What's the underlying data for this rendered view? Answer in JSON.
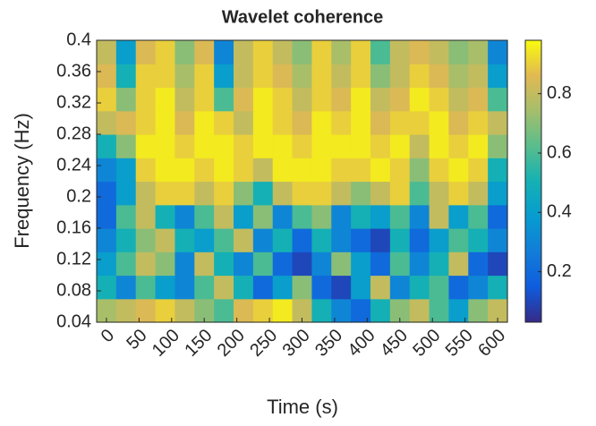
{
  "chart_data": {
    "type": "heatmap",
    "title": "Wavelet coherence",
    "x_label": "Time (s)",
    "y_label": "Frequency (Hz)",
    "colormap": "parula",
    "x": [
      0,
      30,
      60,
      90,
      120,
      150,
      180,
      210,
      240,
      270,
      300,
      330,
      360,
      390,
      420,
      450,
      480,
      510,
      540,
      570,
      600
    ],
    "y": [
      0.055,
      0.085,
      0.115,
      0.145,
      0.175,
      0.205,
      0.235,
      0.265,
      0.295,
      0.325,
      0.355,
      0.385
    ],
    "z": [
      [
        0.75,
        0.8,
        0.85,
        0.9,
        0.8,
        0.7,
        0.6,
        0.85,
        0.9,
        0.95,
        0.8,
        0.5,
        0.3,
        0.2,
        0.5,
        0.7,
        0.8,
        0.6,
        0.4,
        0.7,
        0.8
      ],
      [
        0.5,
        0.3,
        0.6,
        0.4,
        0.3,
        0.6,
        0.8,
        0.5,
        0.2,
        0.4,
        0.7,
        0.2,
        0.1,
        0.4,
        0.8,
        0.3,
        0.5,
        0.6,
        0.2,
        0.3,
        0.5
      ],
      [
        0.4,
        0.6,
        0.8,
        0.7,
        0.3,
        0.8,
        0.5,
        0.3,
        0.6,
        0.2,
        0.1,
        0.3,
        0.7,
        0.4,
        0.2,
        0.6,
        0.3,
        0.5,
        0.8,
        0.2,
        0.1
      ],
      [
        0.3,
        0.5,
        0.7,
        0.8,
        0.5,
        0.4,
        0.6,
        0.8,
        0.3,
        0.5,
        0.2,
        0.5,
        0.3,
        0.2,
        0.1,
        0.5,
        0.2,
        0.4,
        0.6,
        0.5,
        0.3
      ],
      [
        0.2,
        0.6,
        0.8,
        0.5,
        0.3,
        0.6,
        0.8,
        0.4,
        0.7,
        0.3,
        0.6,
        0.7,
        0.3,
        0.5,
        0.4,
        0.6,
        0.3,
        0.8,
        0.4,
        0.6,
        0.2
      ],
      [
        0.2,
        0.4,
        0.8,
        0.9,
        0.9,
        0.8,
        0.9,
        0.7,
        0.5,
        0.8,
        0.9,
        0.9,
        0.8,
        0.7,
        0.8,
        0.9,
        0.6,
        0.8,
        0.9,
        0.8,
        0.4
      ],
      [
        0.3,
        0.4,
        0.9,
        0.95,
        0.95,
        0.9,
        0.95,
        0.9,
        0.8,
        0.95,
        0.95,
        0.95,
        0.9,
        0.9,
        0.95,
        0.9,
        0.7,
        0.9,
        0.95,
        0.9,
        0.5
      ],
      [
        0.5,
        0.7,
        0.95,
        0.95,
        0.9,
        0.95,
        0.95,
        0.9,
        0.95,
        0.95,
        0.9,
        0.95,
        0.95,
        0.95,
        0.9,
        0.95,
        0.8,
        0.95,
        0.9,
        0.95,
        0.7
      ],
      [
        0.8,
        0.85,
        0.9,
        0.95,
        0.85,
        0.95,
        0.9,
        0.8,
        0.95,
        0.9,
        0.85,
        0.95,
        0.9,
        0.95,
        0.85,
        0.9,
        0.9,
        0.95,
        0.85,
        0.9,
        0.8
      ],
      [
        0.9,
        0.7,
        0.9,
        0.95,
        0.8,
        0.9,
        0.6,
        0.85,
        0.95,
        0.9,
        0.8,
        0.9,
        0.85,
        0.95,
        0.8,
        0.85,
        0.95,
        0.9,
        0.8,
        0.85,
        0.6
      ],
      [
        0.85,
        0.5,
        0.9,
        0.9,
        0.75,
        0.9,
        0.4,
        0.8,
        0.9,
        0.85,
        0.75,
        0.9,
        0.8,
        0.9,
        0.7,
        0.8,
        0.9,
        0.85,
        0.75,
        0.8,
        0.4
      ],
      [
        0.8,
        0.4,
        0.85,
        0.9,
        0.7,
        0.85,
        0.3,
        0.8,
        0.9,
        0.8,
        0.7,
        0.9,
        0.75,
        0.9,
        0.6,
        0.8,
        0.85,
        0.8,
        0.7,
        0.75,
        0.3
      ]
    ],
    "xlim": [
      -15,
      615
    ],
    "xticks": [
      0,
      50,
      100,
      150,
      200,
      250,
      300,
      350,
      400,
      450,
      500,
      550,
      600
    ],
    "ylim": [
      0.04,
      0.4
    ],
    "yticks": [
      0.04,
      0.08,
      0.12,
      0.16,
      0.2,
      0.24,
      0.28,
      0.32,
      0.36,
      0.4
    ],
    "clim": [
      0.03,
      0.98
    ],
    "cticks": [
      0.2,
      0.4,
      0.6,
      0.8
    ]
  }
}
